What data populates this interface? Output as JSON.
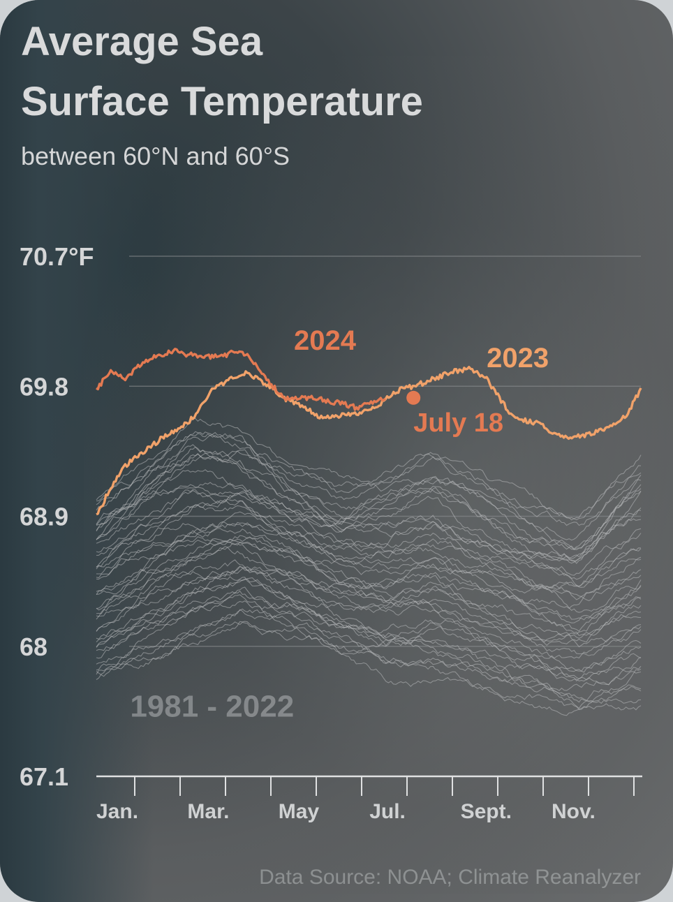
{
  "title_line1": "Average Sea",
  "title_line2": "Surface Temperature",
  "subtitle": "between 60°N and 60°S",
  "source": "Data Source: NOAA; Climate Reanalyzer",
  "colors": {
    "series_2023": "#f1a26a",
    "series_2024": "#e47a52",
    "historical": "#b8babc",
    "grid": "#8a8d8f"
  },
  "chart_data": {
    "type": "line",
    "ylim": [
      67.1,
      70.7
    ],
    "y_ticks": [
      {
        "value": 70.7,
        "label": "70.7°F"
      },
      {
        "value": 69.8,
        "label": "69.8"
      },
      {
        "value": 68.9,
        "label": "68.9"
      },
      {
        "value": 68,
        "label": "68"
      },
      {
        "value": 67.1,
        "label": "67.1"
      }
    ],
    "x_ticks": [
      {
        "month": "Jan",
        "label": "Jan."
      },
      {
        "month": "Mar",
        "label": "Mar."
      },
      {
        "month": "May",
        "label": "May"
      },
      {
        "month": "Jul",
        "label": "Jul."
      },
      {
        "month": "Sep",
        "label": "Sept."
      },
      {
        "month": "Nov",
        "label": "Nov."
      }
    ],
    "grid": "horizontal",
    "annotations": [
      {
        "label": "July 18",
        "series": "2023",
        "month": 7.58,
        "value": 69.72
      }
    ],
    "series": [
      {
        "name": "2023",
        "points": [
          [
            1.0,
            68.9
          ],
          [
            1.3,
            69.1
          ],
          [
            1.6,
            69.25
          ],
          [
            2.0,
            69.35
          ],
          [
            2.4,
            69.45
          ],
          [
            2.8,
            69.52
          ],
          [
            3.1,
            69.62
          ],
          [
            3.4,
            69.78
          ],
          [
            3.8,
            69.85
          ],
          [
            4.1,
            69.9
          ],
          [
            4.5,
            69.82
          ],
          [
            4.9,
            69.72
          ],
          [
            5.3,
            69.65
          ],
          [
            5.7,
            69.58
          ],
          [
            6.1,
            69.6
          ],
          [
            6.5,
            69.62
          ],
          [
            6.9,
            69.68
          ],
          [
            7.3,
            69.78
          ],
          [
            7.6,
            69.8
          ],
          [
            8.0,
            69.85
          ],
          [
            8.4,
            69.9
          ],
          [
            8.8,
            69.92
          ],
          [
            9.1,
            69.85
          ],
          [
            9.4,
            69.7
          ],
          [
            9.7,
            69.57
          ],
          [
            10.1,
            69.55
          ],
          [
            10.5,
            69.48
          ],
          [
            10.9,
            69.44
          ],
          [
            11.3,
            69.48
          ],
          [
            11.7,
            69.52
          ],
          [
            12.0,
            69.6
          ],
          [
            12.3,
            69.78
          ]
        ]
      },
      {
        "name": "2024",
        "points": [
          [
            1.0,
            69.78
          ],
          [
            1.3,
            69.9
          ],
          [
            1.6,
            69.85
          ],
          [
            1.9,
            69.95
          ],
          [
            2.2,
            70.0
          ],
          [
            2.6,
            70.05
          ],
          [
            2.9,
            70.02
          ],
          [
            3.3,
            70.0
          ],
          [
            3.7,
            70.02
          ],
          [
            4.0,
            70.05
          ],
          [
            4.3,
            69.96
          ],
          [
            4.6,
            69.82
          ],
          [
            4.9,
            69.72
          ],
          [
            5.2,
            69.72
          ],
          [
            5.5,
            69.72
          ],
          [
            5.8,
            69.7
          ],
          [
            6.1,
            69.68
          ],
          [
            6.4,
            69.65
          ],
          [
            6.7,
            69.68
          ],
          [
            7.0,
            69.72
          ]
        ]
      }
    ],
    "historical_label": "1981 - 2022",
    "historical_range": {
      "low": [
        [
          1.0,
          67.75
        ],
        [
          2.0,
          67.9
        ],
        [
          3.0,
          68.05
        ],
        [
          4.0,
          68.2
        ],
        [
          5.0,
          68.1
        ],
        [
          6.0,
          67.95
        ],
        [
          7.0,
          67.8
        ],
        [
          8.0,
          67.82
        ],
        [
          9.0,
          67.72
        ],
        [
          10.0,
          67.62
        ],
        [
          11.0,
          67.5
        ],
        [
          12.3,
          67.62
        ]
      ],
      "high": [
        [
          1.0,
          69.05
        ],
        [
          2.0,
          69.28
        ],
        [
          3.0,
          69.5
        ],
        [
          4.0,
          69.45
        ],
        [
          5.0,
          69.25
        ],
        [
          6.0,
          69.12
        ],
        [
          7.0,
          69.18
        ],
        [
          8.0,
          69.3
        ],
        [
          9.0,
          69.15
        ],
        [
          10.0,
          69.0
        ],
        [
          11.0,
          68.9
        ],
        [
          12.3,
          69.3
        ]
      ]
    }
  }
}
